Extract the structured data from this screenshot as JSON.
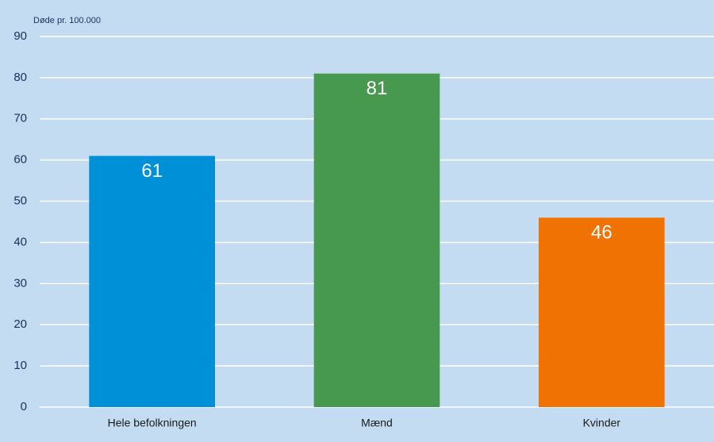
{
  "chart_data": {
    "type": "bar",
    "y_label": "Døde pr. 100.000",
    "categories": [
      "Hele befolkningen",
      "Mænd",
      "Kvinder"
    ],
    "values": [
      61,
      81,
      46
    ],
    "colors": [
      "#0090d8",
      "#489950",
      "#ef7203"
    ],
    "ylim": [
      0,
      90
    ],
    "yticks": [
      0,
      10,
      20,
      30,
      40,
      50,
      60,
      70,
      80,
      90
    ],
    "grid": true
  }
}
